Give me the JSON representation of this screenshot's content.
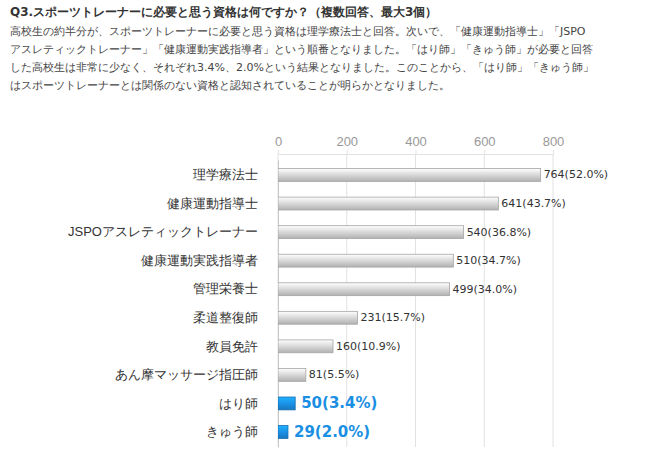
{
  "chart_data": {
    "type": "bar",
    "orientation": "horizontal",
    "title": "Q3.スポーツトレーナーに必要と思う資格は何ですか？（複数回答、最大3個）",
    "subtitle": [
      "高校生の約半分が、スポーツトレーナーに必要と思う資格は理学療法士と回答。次いで、「健康運動指導士」「JSPO",
      "アスレティックトレーナー」「健康運動実践指導者」という順番となりました。「はり師」「きゅう師」が必要と回答",
      "した高校生は非常に少なく、それぞれ3.4%、2.0%という結果となりました。このことから、「はり師」「きゅう師」",
      "はスポーツトレーナーとは関係のない資格と認知されていることが明らかとなりました。"
    ],
    "categories": [
      "理学療法士",
      "健康運動指導士",
      "JSPOアスレティックトレーナー",
      "健康運動実践指導者",
      "管理栄養士",
      "柔道整復師",
      "教員免許",
      "あん摩マッサージ指圧師",
      "はり師",
      "きゅう師"
    ],
    "values": [
      764,
      641,
      540,
      510,
      499,
      231,
      160,
      81,
      50,
      29
    ],
    "value_labels": [
      "764(52.0%)",
      "641(43.7%)",
      "540(36.8%)",
      "510(34.7%)",
      "499(34.0%)",
      "231(15.7%)",
      "160(10.9%)",
      "81(5.5%)",
      "50(3.4%)",
      "29(2.0%)"
    ],
    "colors": [
      "#d4d4d4",
      "#d4d4d4",
      "#d4d4d4",
      "#d4d4d4",
      "#d4d4d4",
      "#d4d4d4",
      "#d4d4d4",
      "#d4d4d4",
      "#1a8fe3",
      "#1a8fe3"
    ],
    "xlim": [
      0,
      800
    ],
    "xticks": [
      0,
      200,
      400,
      600,
      800
    ],
    "grid": true,
    "data_labels": true
  }
}
